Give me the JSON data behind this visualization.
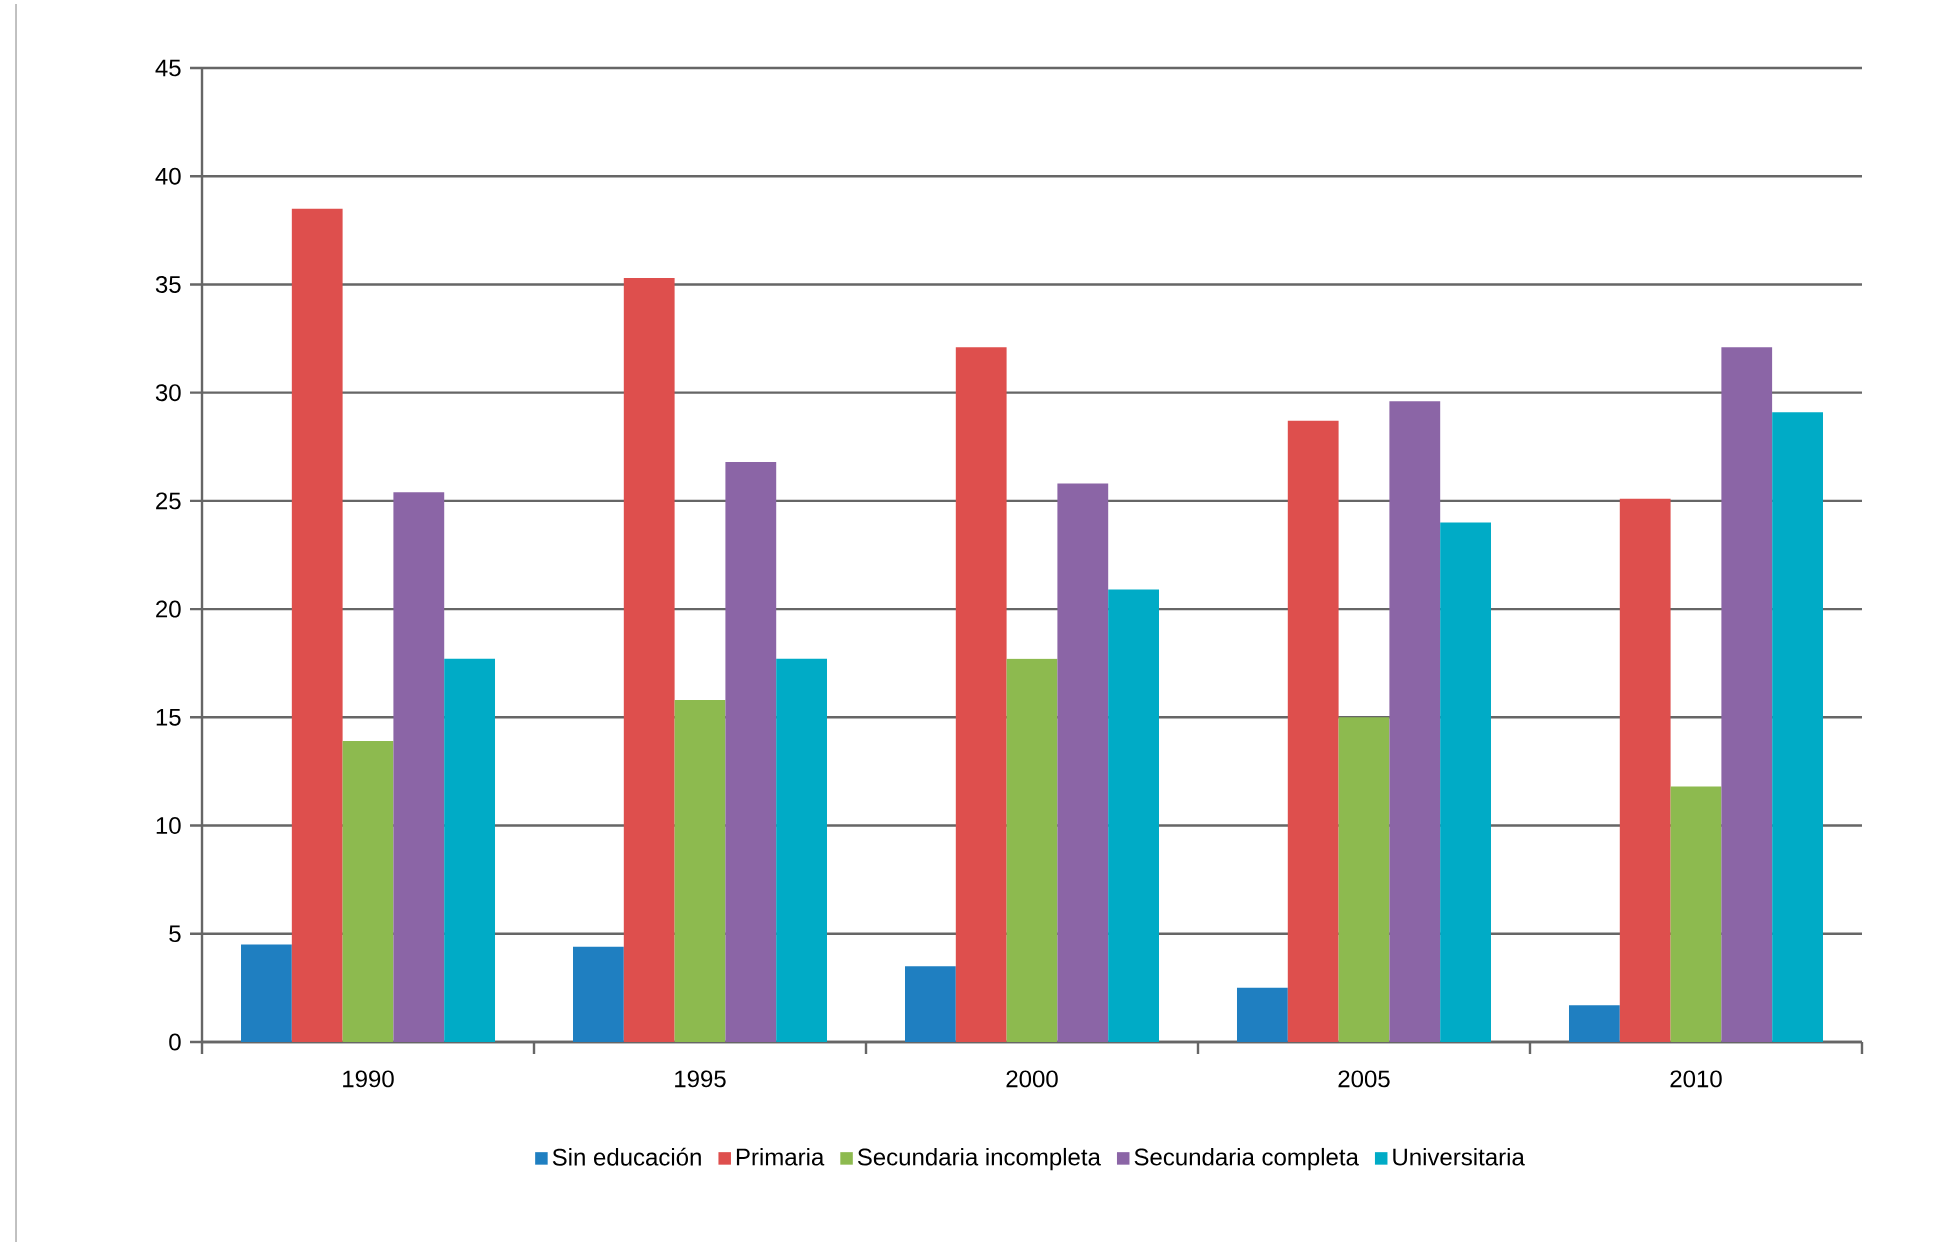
{
  "chart_data": {
    "type": "bar",
    "categories": [
      "1990",
      "1995",
      "2000",
      "2005",
      "2010"
    ],
    "series": [
      {
        "name": "Sin educación",
        "color": "#1f7fc1",
        "values": [
          4.5,
          4.4,
          3.5,
          2.5,
          1.7
        ]
      },
      {
        "name": "Primaria",
        "color": "#de4f4d",
        "values": [
          38.5,
          35.3,
          32.1,
          28.7,
          25.1
        ]
      },
      {
        "name": "Secundaria incompleta",
        "color": "#8dba4f",
        "values": [
          13.9,
          15.8,
          17.7,
          15.0,
          11.8
        ]
      },
      {
        "name": "Secundaria completa",
        "color": "#8b65a6",
        "values": [
          25.4,
          26.8,
          25.8,
          29.6,
          32.1
        ]
      },
      {
        "name": "Universitaria",
        "color": "#00abc6",
        "values": [
          17.7,
          17.7,
          20.9,
          24.0,
          29.1
        ]
      }
    ],
    "ylim": [
      0,
      45
    ],
    "yticks": [
      0,
      5,
      10,
      15,
      20,
      25,
      30,
      35,
      40,
      45
    ],
    "grid": "y",
    "legend": "bottom"
  }
}
